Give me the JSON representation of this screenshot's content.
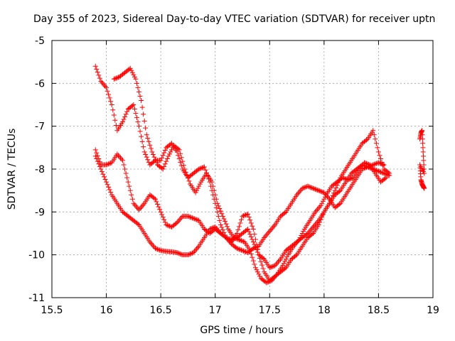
{
  "chart_data": {
    "type": "scatter",
    "title": "Day 355 of 2023, Sidereal Day-to-day VTEC variation (SDTVAR) for receiver uptn",
    "xlabel": "GPS time / hours",
    "ylabel": "SDTVAR / TECUs",
    "xlim": [
      15.5,
      19
    ],
    "ylim": [
      -11,
      -5
    ],
    "xticks": [
      "15.5",
      "16",
      "16.5",
      "17",
      "17.5",
      "18",
      "18.5",
      "19"
    ],
    "yticks": [
      "-5",
      "-6",
      "-7",
      "-8",
      "-9",
      "-10",
      "-11"
    ],
    "grid": true,
    "marker": "+",
    "color": "#ff0000",
    "series": [
      {
        "x": [
          15.9,
          15.95,
          16.0,
          16.05,
          16.1,
          16.15,
          16.2,
          16.25,
          16.3,
          16.35,
          16.4,
          16.45,
          16.5,
          16.55,
          16.6,
          16.65,
          16.7,
          16.75,
          16.8,
          16.85,
          16.9,
          16.95,
          17.0,
          17.05,
          17.1,
          17.15,
          17.2,
          17.25,
          17.3,
          17.35,
          17.4,
          17.45,
          17.5,
          17.55,
          17.6,
          17.65,
          17.7,
          17.75,
          17.8,
          17.85,
          17.9,
          17.95,
          18.0,
          18.05,
          18.1,
          18.15,
          18.2,
          18.25,
          18.3,
          18.35,
          18.4,
          18.45,
          18.5,
          18.55,
          18.6
        ],
        "y": [
          -5.6,
          -5.95,
          -6.1,
          -6.5,
          -7.1,
          -6.9,
          -6.6,
          -6.5,
          -7.0,
          -7.6,
          -7.9,
          -7.8,
          -7.8,
          -7.5,
          -7.4,
          -7.6,
          -8.0,
          -8.2,
          -8.1,
          -8.0,
          -7.95,
          -8.3,
          -8.8,
          -9.3,
          -9.6,
          -9.7,
          -9.5,
          -9.1,
          -9.05,
          -9.4,
          -10.0,
          -10.4,
          -10.6,
          -10.5,
          -10.4,
          -10.3,
          -10.1,
          -10.0,
          -9.8,
          -9.6,
          -9.5,
          -9.3,
          -9.0,
          -8.8,
          -8.5,
          -8.2,
          -8.0,
          -7.8,
          -7.6,
          -7.4,
          -7.3,
          -7.1,
          -7.6,
          -8.0,
          -8.1
        ]
      },
      {
        "x": [
          16.07,
          16.12,
          16.17,
          16.22,
          16.27,
          16.32,
          16.37,
          16.42,
          16.47,
          16.52,
          16.57,
          16.62,
          16.67,
          16.72,
          16.77,
          16.82,
          16.87,
          16.92,
          16.97,
          17.02,
          17.07,
          17.12,
          17.17,
          17.22,
          17.27,
          17.32,
          17.37,
          17.42,
          17.47,
          17.52,
          17.57,
          17.62,
          17.67,
          17.72,
          17.77,
          17.82,
          17.87,
          17.92,
          17.97,
          18.02,
          18.07,
          18.12,
          18.17,
          18.22,
          18.27,
          18.32,
          18.37,
          18.42,
          18.47,
          18.52,
          18.57
        ],
        "y": [
          -5.9,
          -5.85,
          -5.75,
          -5.65,
          -5.9,
          -6.4,
          -7.2,
          -7.6,
          -7.9,
          -8.0,
          -7.7,
          -7.45,
          -7.55,
          -8.0,
          -8.35,
          -8.55,
          -8.3,
          -8.1,
          -8.3,
          -8.8,
          -9.1,
          -9.4,
          -9.6,
          -9.65,
          -9.7,
          -9.9,
          -10.3,
          -10.55,
          -10.65,
          -10.6,
          -10.45,
          -10.25,
          -10.0,
          -9.8,
          -9.65,
          -9.4,
          -9.2,
          -9.0,
          -8.85,
          -8.6,
          -8.4,
          -8.3,
          -8.2,
          -8.25,
          -8.2,
          -8.0,
          -7.85,
          -7.9,
          -8.1,
          -8.3,
          -8.2
        ]
      },
      {
        "x": [
          15.9,
          15.95,
          16.0,
          16.05,
          16.1,
          16.15,
          16.2,
          16.25,
          16.3,
          16.35,
          16.4,
          16.45,
          16.5,
          16.55,
          16.6,
          16.65,
          16.7,
          16.75,
          16.8,
          16.85,
          16.9,
          16.95,
          17.0,
          17.05,
          17.1,
          17.15,
          17.2,
          17.25,
          17.3,
          17.35,
          17.4,
          17.45,
          17.5,
          17.55,
          17.6,
          17.65,
          17.7,
          17.75,
          17.8,
          17.85,
          17.9,
          17.95,
          18.0,
          18.05,
          18.1,
          18.15,
          18.2,
          18.25,
          18.3,
          18.35,
          18.4,
          18.45,
          18.5,
          18.55
        ],
        "y": [
          -7.55,
          -7.9,
          -7.9,
          -7.85,
          -7.65,
          -7.8,
          -8.3,
          -8.8,
          -8.95,
          -8.8,
          -8.6,
          -8.7,
          -9.0,
          -9.3,
          -9.35,
          -9.25,
          -9.1,
          -9.1,
          -9.15,
          -9.2,
          -9.4,
          -9.5,
          -9.4,
          -9.5,
          -9.6,
          -9.75,
          -9.85,
          -9.9,
          -9.95,
          -9.85,
          -9.8,
          -9.6,
          -9.45,
          -9.3,
          -9.1,
          -9.0,
          -8.8,
          -8.6,
          -8.45,
          -8.4,
          -8.45,
          -8.5,
          -8.55,
          -8.7,
          -8.9,
          -8.8,
          -8.6,
          -8.4,
          -8.2,
          -8.0,
          -7.95,
          -7.9,
          -7.85,
          -7.9
        ]
      },
      {
        "x": [
          15.9,
          15.95,
          16.0,
          16.05,
          16.1,
          16.15,
          16.2,
          16.25,
          16.3,
          16.35,
          16.4,
          16.45,
          16.5,
          16.55,
          16.6,
          16.65,
          16.7,
          16.75,
          16.8,
          16.85,
          16.9,
          16.95,
          17.0,
          17.05,
          17.1,
          17.15,
          17.2,
          17.25,
          17.3,
          17.35,
          17.4,
          17.45,
          17.5,
          17.55,
          17.6,
          17.65,
          17.7,
          17.75,
          17.8,
          17.85,
          17.9,
          17.95,
          18.0,
          18.05,
          18.1,
          18.15,
          18.2,
          18.25,
          18.3,
          18.35,
          18.4,
          18.45,
          18.5,
          18.55,
          18.6
        ],
        "y": [
          -7.7,
          -8.0,
          -8.3,
          -8.6,
          -8.8,
          -9.0,
          -9.1,
          -9.2,
          -9.3,
          -9.5,
          -9.7,
          -9.85,
          -9.9,
          -9.92,
          -9.93,
          -9.95,
          -10.0,
          -10.0,
          -9.95,
          -9.8,
          -9.6,
          -9.4,
          -9.35,
          -9.5,
          -9.6,
          -9.65,
          -9.6,
          -9.5,
          -9.4,
          -9.7,
          -10.0,
          -10.1,
          -10.3,
          -10.25,
          -10.1,
          -9.9,
          -9.8,
          -9.7,
          -9.6,
          -9.5,
          -9.35,
          -9.2,
          -9.0,
          -8.8,
          -8.6,
          -8.5,
          -8.3,
          -8.1,
          -8.0,
          -7.9,
          -7.95,
          -8.0,
          -8.05,
          -8.1,
          -8.15
        ]
      },
      {
        "x": [
          18.88,
          18.89,
          18.9,
          18.91,
          18.92,
          18.88,
          18.89,
          18.9,
          18.91,
          18.92
        ],
        "y": [
          -7.3,
          -7.15,
          -7.1,
          -7.6,
          -8.1,
          -7.9,
          -8.25,
          -8.35,
          -8.4,
          -8.45
        ]
      }
    ]
  }
}
